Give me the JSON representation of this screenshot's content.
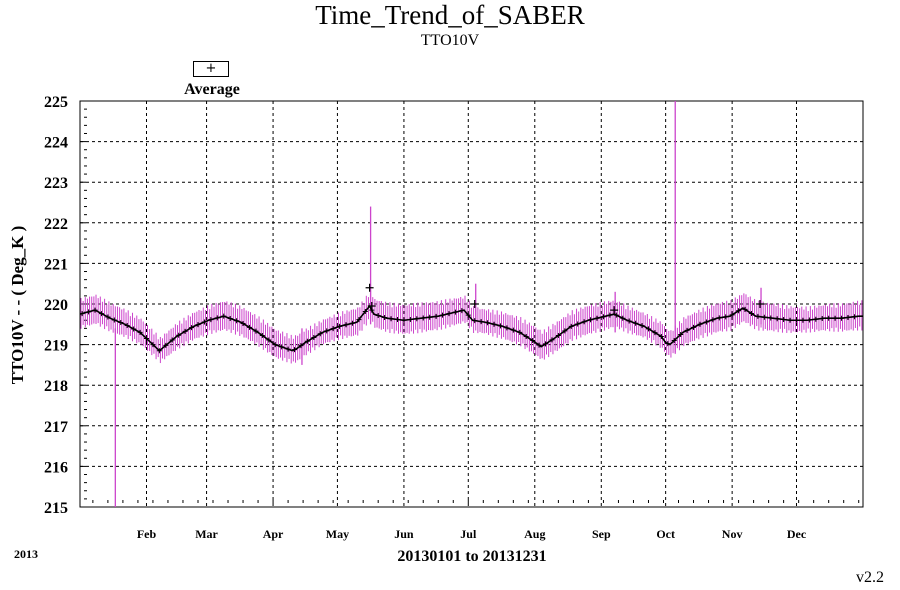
{
  "chart_data": {
    "type": "line",
    "title": "Time_Trend_of_SABER",
    "subtitle": "TTO10V",
    "ylabel": "TTO10V  - - ( Deg_K )",
    "xlabel": "20130101 to 20131231",
    "year_label": "2013",
    "version": "v2.2",
    "legend": {
      "symbol": "+",
      "label": "Average"
    },
    "ylim": [
      215,
      225
    ],
    "yticks": [
      215,
      216,
      217,
      218,
      219,
      220,
      221,
      222,
      223,
      224,
      225
    ],
    "xlim_day": [
      1,
      366
    ],
    "x_unit": "day of year",
    "month_ticks": [
      {
        "label": "Feb",
        "day": 32
      },
      {
        "label": "Mar",
        "day": 60
      },
      {
        "label": "Apr",
        "day": 91
      },
      {
        "label": "May",
        "day": 121
      },
      {
        "label": "Jun",
        "day": 152
      },
      {
        "label": "Jul",
        "day": 182
      },
      {
        "label": "Aug",
        "day": 213
      },
      {
        "label": "Sep",
        "day": 244
      },
      {
        "label": "Oct",
        "day": 274
      },
      {
        "label": "Nov",
        "day": 305
      },
      {
        "label": "Dec",
        "day": 335
      }
    ],
    "grid": true,
    "series": [
      {
        "name": "Average",
        "color": "#000000",
        "range_color": "#cc44cc",
        "x": [
          1,
          8,
          15,
          22,
          29,
          34,
          38,
          46,
          54,
          61,
          68,
          76,
          84,
          92,
          100,
          102,
          106,
          114,
          122,
          130,
          136,
          138,
          144,
          152,
          160,
          168,
          176,
          180,
          184,
          190,
          198,
          206,
          212,
          216,
          222,
          230,
          238,
          246,
          250,
          256,
          264,
          272,
          274,
          276,
          282,
          290,
          298,
          304,
          310,
          316,
          324,
          332,
          340,
          348,
          356,
          364,
          366
        ],
        "y": [
          219.75,
          219.85,
          219.65,
          219.5,
          219.3,
          219.05,
          218.85,
          219.2,
          219.45,
          219.6,
          219.7,
          219.55,
          219.3,
          219.0,
          218.85,
          218.9,
          219.05,
          219.3,
          219.45,
          219.55,
          219.95,
          219.75,
          219.65,
          219.6,
          219.65,
          219.7,
          219.8,
          219.85,
          219.6,
          219.55,
          219.45,
          219.3,
          219.1,
          218.95,
          219.15,
          219.45,
          219.6,
          219.7,
          219.75,
          219.6,
          219.45,
          219.2,
          219.05,
          219.0,
          219.3,
          219.5,
          219.65,
          219.7,
          219.9,
          219.7,
          219.65,
          219.6,
          219.6,
          219.65,
          219.65,
          219.7,
          219.7
        ],
        "spikes": [
          {
            "day": 17,
            "min": 215.0,
            "max": 219.4
          },
          {
            "day": 104,
            "min": 218.5,
            "max": 219.4
          },
          {
            "day": 136,
            "min": 219.5,
            "max": 222.4
          },
          {
            "day": 185,
            "min": 219.6,
            "max": 220.5
          },
          {
            "day": 250,
            "min": 219.3,
            "max": 220.3
          },
          {
            "day": 278,
            "min": 218.8,
            "max": 225.0
          },
          {
            "day": 318,
            "min": 219.5,
            "max": 220.4
          }
        ],
        "marked_points": [
          {
            "day": 136,
            "y": 220.4
          },
          {
            "day": 137,
            "y": 219.95
          },
          {
            "day": 185,
            "y": 220.0
          },
          {
            "day": 250,
            "y": 219.85
          },
          {
            "day": 318,
            "y": 220.0
          }
        ]
      }
    ]
  }
}
